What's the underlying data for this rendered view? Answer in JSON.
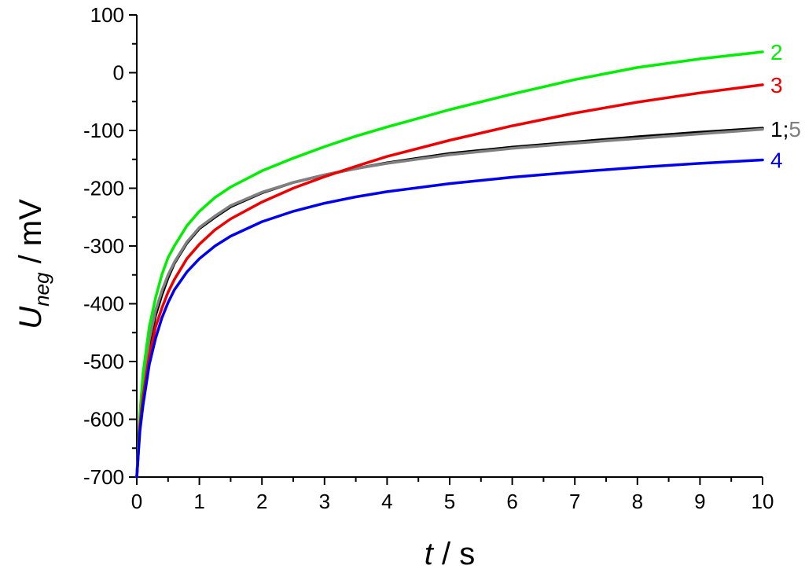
{
  "chart_data": {
    "type": "line",
    "title": "",
    "xlabel": {
      "italic": "t",
      "rest": " / s"
    },
    "ylabel": {
      "italic": "U",
      "subscript": "neg",
      "rest": " / mV"
    },
    "xlim": [
      0,
      10
    ],
    "ylim": [
      -700,
      100
    ],
    "xticks": [
      0,
      1,
      2,
      3,
      4,
      5,
      6,
      7,
      8,
      9,
      10
    ],
    "yticks": [
      100,
      0,
      -100,
      -200,
      -300,
      -400,
      -500,
      -600,
      -700
    ],
    "grid": false,
    "series": [
      {
        "id": "s1",
        "color": "#000000",
        "x": [
          0,
          0.05,
          0.1,
          0.2,
          0.3,
          0.4,
          0.5,
          0.6,
          0.8,
          1,
          1.25,
          1.5,
          2,
          2.5,
          3,
          3.5,
          4,
          5,
          6,
          7,
          8,
          9,
          10
        ],
        "y": [
          -700,
          -610,
          -550,
          -470,
          -420,
          -385,
          -355,
          -330,
          -295,
          -270,
          -250,
          -232,
          -208,
          -190,
          -177,
          -166,
          -156,
          -140,
          -129,
          -120,
          -111,
          -103,
          -96
        ]
      },
      {
        "id": "s5",
        "color": "#808080",
        "x": [
          0,
          0.05,
          0.1,
          0.2,
          0.3,
          0.4,
          0.5,
          0.6,
          0.8,
          1,
          1.25,
          1.5,
          2,
          2.5,
          3,
          3.5,
          4,
          5,
          6,
          7,
          8,
          9,
          10
        ],
        "y": [
          -700,
          -600,
          -540,
          -462,
          -412,
          -378,
          -350,
          -328,
          -293,
          -268,
          -248,
          -230,
          -207,
          -190,
          -177,
          -166,
          -157,
          -142,
          -131,
          -122,
          -114,
          -106,
          -98
        ]
      },
      {
        "id": "s2",
        "color": "#00ee00",
        "x": [
          0,
          0.05,
          0.1,
          0.2,
          0.3,
          0.4,
          0.5,
          0.6,
          0.8,
          1,
          1.25,
          1.5,
          2,
          2.5,
          3,
          3.5,
          4,
          5,
          6,
          7,
          8,
          9,
          10
        ],
        "y": [
          -700,
          -590,
          -520,
          -440,
          -390,
          -350,
          -320,
          -300,
          -265,
          -240,
          -216,
          -198,
          -170,
          -148,
          -128,
          -110,
          -94,
          -64,
          -37,
          -12,
          9,
          24,
          36
        ]
      },
      {
        "id": "s3",
        "color": "#ee0000",
        "x": [
          0,
          0.05,
          0.1,
          0.2,
          0.3,
          0.4,
          0.5,
          0.6,
          0.8,
          1,
          1.25,
          1.5,
          2,
          2.5,
          3,
          3.5,
          4,
          5,
          6,
          7,
          8,
          9,
          10
        ],
        "y": [
          -700,
          -610,
          -560,
          -490,
          -440,
          -408,
          -380,
          -358,
          -322,
          -297,
          -272,
          -253,
          -224,
          -200,
          -180,
          -162,
          -145,
          -117,
          -92,
          -70,
          -51,
          -35,
          -21
        ]
      },
      {
        "id": "s4",
        "color": "#0000ee",
        "x": [
          0,
          0.05,
          0.1,
          0.2,
          0.3,
          0.4,
          0.5,
          0.6,
          0.8,
          1,
          1.25,
          1.5,
          2,
          2.5,
          3,
          3.5,
          4,
          5,
          6,
          7,
          8,
          9,
          10
        ],
        "y": [
          -700,
          -620,
          -575,
          -505,
          -460,
          -425,
          -398,
          -376,
          -345,
          -322,
          -300,
          -283,
          -258,
          -240,
          -226,
          -215,
          -206,
          -192,
          -181,
          -172,
          -164,
          -157,
          -151
        ]
      }
    ],
    "annotations": [
      {
        "text": "2",
        "color": "#00ee00",
        "x": 10,
        "y": 36
      },
      {
        "text": "3",
        "color": "#ee0000",
        "x": 10,
        "y": -21
      },
      {
        "parts": [
          {
            "text": "1;",
            "color": "#000000"
          },
          {
            "text": "5",
            "color": "#808080"
          }
        ],
        "x": 10,
        "y": -97
      },
      {
        "text": "4",
        "color": "#0000ee",
        "x": 10,
        "y": -151
      }
    ]
  }
}
